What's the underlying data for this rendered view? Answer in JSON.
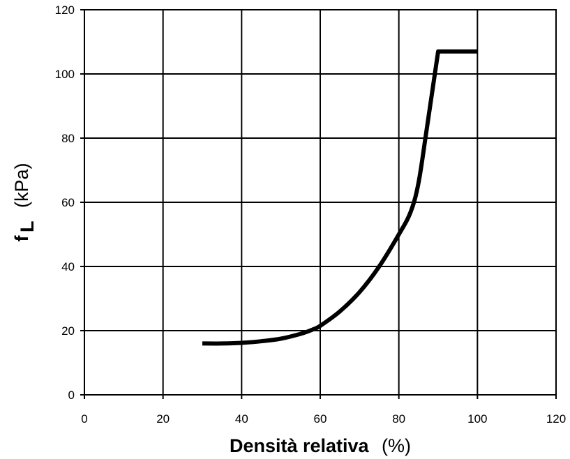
{
  "chart_data": {
    "type": "line",
    "title": "",
    "xlabel": {
      "main": "Densità relativa",
      "unit": "(%)"
    },
    "ylabel": {
      "symbol": "f",
      "subscript": "L",
      "unit": "(kPa)"
    },
    "xlim": [
      0,
      120
    ],
    "ylim": [
      0,
      120
    ],
    "xticks": [
      "0",
      "20",
      "40",
      "60",
      "80",
      "100",
      "120"
    ],
    "yticks": [
      "0",
      "20",
      "40",
      "60",
      "80",
      "100",
      "120"
    ],
    "grid": true,
    "legend": "none",
    "line_color": "#000000",
    "series": [
      {
        "x": [
          30,
          35,
          40,
          45,
          50,
          55,
          58,
          60,
          65,
          70,
          75,
          80,
          83,
          85,
          87,
          90,
          100
        ],
        "y": [
          16,
          16,
          16.2,
          16.7,
          17.5,
          19,
          20.3,
          21.5,
          26,
          32,
          40,
          50,
          57,
          66,
          82,
          107,
          107
        ]
      }
    ]
  }
}
